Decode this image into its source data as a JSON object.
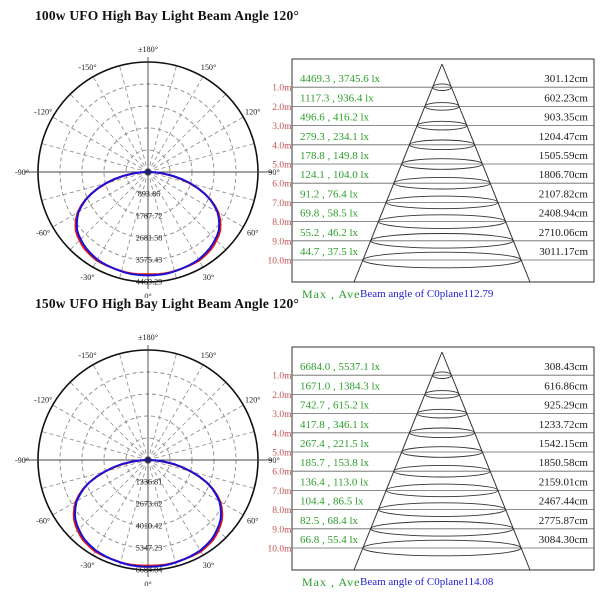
{
  "colors": {
    "lux_text_green": "#2d9e2d",
    "height_label_red": "#c05555",
    "beam_angle_blue": "#2222cc",
    "curve_c0_red": "#e01515",
    "curve_c90_blue": "#1a10d8",
    "grid_gray": "#8a8a8a",
    "line_dark": "#333333",
    "text_dark": "#1a1a1a"
  },
  "chart_data": [
    {
      "type": "polar",
      "title": "100w UFO High Bay Light Beam Angle 120°",
      "polar": {
        "rings": 5,
        "spoke_step_deg": 15,
        "ring_labels": [
          "893.86",
          "1787.72",
          "2681.58",
          "3575.43",
          "4469.29"
        ],
        "angle_labels": [
          {
            "deg": 0,
            "label": "±180°"
          },
          {
            "deg": 30,
            "label": "150°"
          },
          {
            "deg": -30,
            "label": "-150°"
          },
          {
            "deg": 60,
            "label": "120°"
          },
          {
            "deg": -60,
            "label": "-120°"
          },
          {
            "deg": 90,
            "label": "90°"
          },
          {
            "deg": -90,
            "label": "-90°"
          },
          {
            "deg": 120,
            "label": "60°"
          },
          {
            "deg": -120,
            "label": "-60°"
          },
          {
            "deg": 150,
            "label": "30°"
          },
          {
            "deg": -150,
            "label": "-30°"
          },
          {
            "deg": 180,
            "label": "0°"
          }
        ],
        "beam_profile": {
          "angles_from_nadir_deg": [
            0,
            10,
            20,
            30,
            40,
            50,
            55,
            60,
            65,
            70,
            75,
            80,
            85,
            90
          ],
          "c90_rel": [
            0.94,
            0.94,
            0.93,
            0.92,
            0.89,
            0.84,
            0.79,
            0.73,
            0.64,
            0.53,
            0.4,
            0.26,
            0.12,
            0.02
          ],
          "c0_rel": [
            0.93,
            0.935,
            0.93,
            0.93,
            0.905,
            0.855,
            0.805,
            0.74,
            0.65,
            0.53,
            0.39,
            0.25,
            0.11,
            0.02
          ]
        }
      },
      "cone": {
        "rows": [
          {
            "height": "1.0m",
            "max_ave_lux": "4469.3 , 3745.6 lx",
            "spot_diameter": "301.12cm"
          },
          {
            "height": "2.0m",
            "max_ave_lux": "1117.3 , 936.4 lx",
            "spot_diameter": "602.23cm"
          },
          {
            "height": "3.0m",
            "max_ave_lux": "496.6 , 416.2 lx",
            "spot_diameter": "903.35cm"
          },
          {
            "height": "4.0m",
            "max_ave_lux": "279.3 , 234.1 lx",
            "spot_diameter": "1204.47cm"
          },
          {
            "height": "5.0m",
            "max_ave_lux": "178.8 , 149.8 lx",
            "spot_diameter": "1505.59cm"
          },
          {
            "height": "6.0m",
            "max_ave_lux": "124.1 , 104.0 lx",
            "spot_diameter": "1806.70cm"
          },
          {
            "height": "7.0m",
            "max_ave_lux": "91.2 , 76.4 lx",
            "spot_diameter": "2107.82cm"
          },
          {
            "height": "8.0m",
            "max_ave_lux": "69.8 , 58.5 lx",
            "spot_diameter": "2408.94cm"
          },
          {
            "height": "9.0m",
            "max_ave_lux": "55.2 , 46.2 lx",
            "spot_diameter": "2710.06cm"
          },
          {
            "height": "10.0m",
            "max_ave_lux": "44.7 , 37.5 lx",
            "spot_diameter": "3011.17cm"
          }
        ],
        "footer_left": "Max , Ave",
        "footer_right": "Beam angle of C0plane112.79"
      }
    },
    {
      "type": "polar",
      "title": "150w UFO High Bay Light Beam Angle 120°",
      "polar": {
        "rings": 5,
        "spoke_step_deg": 15,
        "ring_labels": [
          "1336.81",
          "2673.62",
          "4010.42",
          "5347.23",
          "6684.04"
        ],
        "angle_labels": [
          {
            "deg": 0,
            "label": "±180°"
          },
          {
            "deg": 30,
            "label": "150°"
          },
          {
            "deg": -30,
            "label": "-150°"
          },
          {
            "deg": 60,
            "label": "120°"
          },
          {
            "deg": -60,
            "label": "-120°"
          },
          {
            "deg": 90,
            "label": "90°"
          },
          {
            "deg": -90,
            "label": "-90°"
          },
          {
            "deg": 120,
            "label": "60°"
          },
          {
            "deg": -120,
            "label": "-60°"
          },
          {
            "deg": 150,
            "label": "30°"
          },
          {
            "deg": -150,
            "label": "-30°"
          },
          {
            "deg": 180,
            "label": "0°"
          }
        ],
        "beam_profile": {
          "angles_from_nadir_deg": [
            0,
            10,
            20,
            30,
            40,
            50,
            55,
            60,
            65,
            70,
            75,
            80,
            85,
            90
          ],
          "c90_rel": [
            0.97,
            0.97,
            0.96,
            0.95,
            0.92,
            0.86,
            0.81,
            0.75,
            0.66,
            0.55,
            0.41,
            0.27,
            0.12,
            0.02
          ],
          "c0_rel": [
            0.96,
            0.965,
            0.96,
            0.96,
            0.935,
            0.875,
            0.825,
            0.76,
            0.67,
            0.55,
            0.4,
            0.26,
            0.11,
            0.02
          ]
        }
      },
      "cone": {
        "rows": [
          {
            "height": "1.0m",
            "max_ave_lux": "6684.0 , 5537.1 lx",
            "spot_diameter": "308.43cm"
          },
          {
            "height": "2.0m",
            "max_ave_lux": "1671.0 , 1384.3 lx",
            "spot_diameter": "616.86cm"
          },
          {
            "height": "3.0m",
            "max_ave_lux": "742.7 , 615.2 lx",
            "spot_diameter": "925.29cm"
          },
          {
            "height": "4.0m",
            "max_ave_lux": "417.8 , 346.1 lx",
            "spot_diameter": "1233.72cm"
          },
          {
            "height": "5.0m",
            "max_ave_lux": "267.4 , 221.5 lx",
            "spot_diameter": "1542.15cm"
          },
          {
            "height": "6.0m",
            "max_ave_lux": "185.7 , 153.8 lx",
            "spot_diameter": "1850.58cm"
          },
          {
            "height": "7.0m",
            "max_ave_lux": "136.4 , 113.0 lx",
            "spot_diameter": "2159.01cm"
          },
          {
            "height": "8.0m",
            "max_ave_lux": "104.4 , 86.5 lx",
            "spot_diameter": "2467.44cm"
          },
          {
            "height": "9.0m",
            "max_ave_lux": "82.5 , 68.4 lx",
            "spot_diameter": "2775.87cm"
          },
          {
            "height": "10.0m",
            "max_ave_lux": "66.8 , 55.4 lx",
            "spot_diameter": "3084.30cm"
          }
        ],
        "footer_left": "Max , Ave",
        "footer_right": "Beam angle of C0plane114.08"
      }
    }
  ]
}
